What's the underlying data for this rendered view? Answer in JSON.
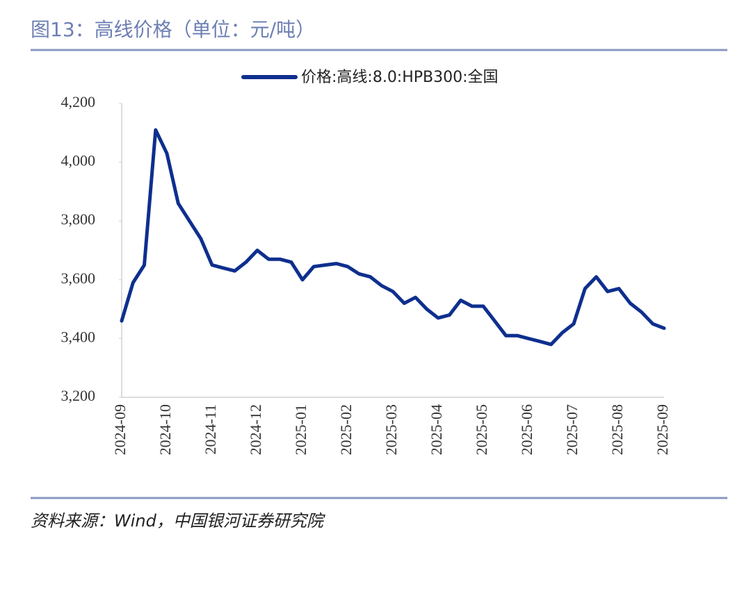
{
  "chart_data": {
    "type": "line",
    "title": "图13：高线价格（单位：元/吨）",
    "source": "资料来源：Wind，中国银河证券研究院",
    "categories": [
      "2024-09",
      null,
      null,
      null,
      "2024-10",
      null,
      null,
      null,
      "2024-11",
      null,
      null,
      null,
      "2024-12",
      null,
      null,
      null,
      "2025-01",
      null,
      null,
      null,
      "2025-02",
      null,
      null,
      null,
      "2025-03",
      null,
      null,
      null,
      "2025-04",
      null,
      null,
      null,
      "2025-05",
      null,
      null,
      null,
      "2025-06",
      null,
      null,
      null,
      "2025-07",
      null,
      null,
      null,
      "2025-08",
      null,
      null,
      null,
      "2025-09"
    ],
    "series": [
      {
        "name": "价格:高线:8.0:HPB300:全国",
        "color": "#0e2f8e",
        "values": [
          3460,
          3590,
          3650,
          4110,
          4030,
          3860,
          3800,
          3740,
          3650,
          3640,
          3630,
          3660,
          3700,
          3670,
          3670,
          3660,
          3600,
          3645,
          3650,
          3655,
          3645,
          3620,
          3610,
          3580,
          3560,
          3520,
          3540,
          3500,
          3470,
          3480,
          3530,
          3510,
          3510,
          3460,
          3410,
          3410,
          3400,
          3390,
          3380,
          3420,
          3450,
          3570,
          3610,
          3560,
          3570,
          3520,
          3490,
          3450,
          3435
        ]
      }
    ],
    "ylim": [
      3200,
      4200
    ],
    "yticks": [
      {
        "value": 3200,
        "label": "3,200"
      },
      {
        "value": 3400,
        "label": "3,400"
      },
      {
        "value": 3600,
        "label": "3,600"
      },
      {
        "value": 3800,
        "label": "3,800"
      },
      {
        "value": 4000,
        "label": "4,000"
      },
      {
        "value": 4200,
        "label": "4,200"
      }
    ],
    "legend": "top"
  }
}
